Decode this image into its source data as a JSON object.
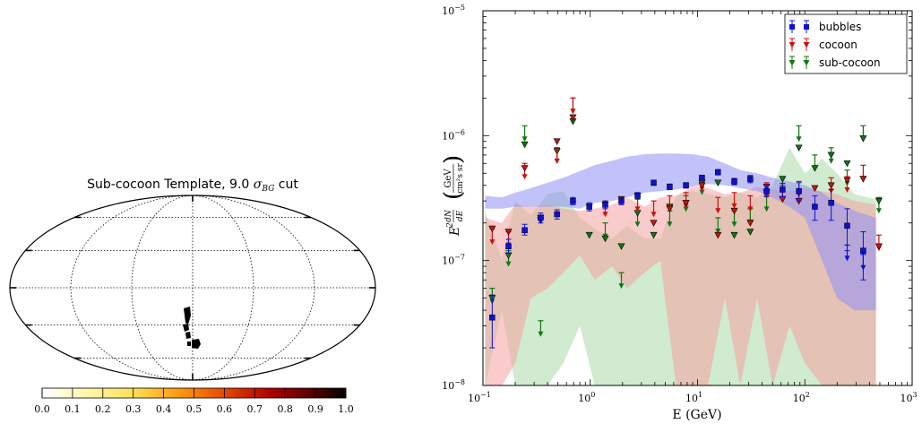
{
  "left_panel": {
    "title_prefix": "Sub-cocoon Template, 9.0 ",
    "title_sigma": "σ",
    "title_sub": "BG",
    "title_suffix": " cut",
    "colorbar": {
      "ticks": [
        "0.0",
        "0.1",
        "0.2",
        "0.3",
        "0.4",
        "0.5",
        "0.6",
        "0.7",
        "0.8",
        "0.9",
        "1.0"
      ],
      "tick_values": [
        0.0,
        0.1,
        0.2,
        0.3,
        0.4,
        0.5,
        0.6,
        0.7,
        0.8,
        0.9,
        1.0
      ],
      "colormap": "hot_r"
    }
  },
  "chart_data": {
    "type": "scatter",
    "xscale": "log",
    "yscale": "log",
    "xlim": [
      0.1,
      1000
    ],
    "ylim": [
      1e-08,
      1e-05
    ],
    "xlabel": "E (GeV)",
    "ylabel_lhs": "E",
    "ylabel_frac": "dN/dE",
    "ylabel_units_num": "GeV",
    "ylabel_units_den": "cm²s sr",
    "x_ticks": [
      {
        "value": 0.1,
        "base": "10",
        "exp": "−1"
      },
      {
        "value": 1,
        "base": "10",
        "exp": "0"
      },
      {
        "value": 10,
        "base": "10",
        "exp": "1"
      },
      {
        "value": 100,
        "base": "10",
        "exp": "2"
      },
      {
        "value": 1000,
        "base": "10",
        "exp": "3"
      }
    ],
    "y_ticks": [
      {
        "value": 1e-08,
        "base": "10",
        "exp": "−8"
      },
      {
        "value": 1e-07,
        "base": "10",
        "exp": "−7"
      },
      {
        "value": 1e-06,
        "base": "10",
        "exp": "−6"
      },
      {
        "value": 1e-05,
        "base": "10",
        "exp": "−5"
      }
    ],
    "legend_position": "top-right",
    "legend": [
      "bubbles",
      "cocoon",
      "sub-cocoon"
    ],
    "series": [
      {
        "name": "bubbles",
        "color": "#1010d0",
        "band_color": "#8f8ff5",
        "x": [
          0.122,
          0.173,
          0.245,
          0.345,
          0.49,
          0.69,
          0.98,
          1.38,
          1.95,
          2.76,
          3.9,
          5.5,
          7.8,
          11,
          15.5,
          22,
          31,
          44,
          62,
          88,
          124,
          176,
          248,
          350
        ],
        "y": [
          3.5e-08,
          1.3e-07,
          1.75e-07,
          2.2e-07,
          2.35e-07,
          3e-07,
          2.7e-07,
          2.8e-07,
          3e-07,
          3.3e-07,
          4.2e-07,
          3.9e-07,
          4e-07,
          4.6e-07,
          5.1e-07,
          4.3e-07,
          4.5e-07,
          3.6e-07,
          3.7e-07,
          3.6e-07,
          2.7e-07,
          2.9e-07,
          1.9e-07,
          1.2e-07
        ],
        "err_lo": [
          1.5e-08,
          1.5e-08,
          1.5e-08,
          2e-08,
          2e-08,
          2e-08,
          2e-08,
          2e-08,
          2e-08,
          2e-08,
          2e-08,
          2e-08,
          2e-08,
          2e-08,
          2.5e-08,
          2.5e-08,
          3e-08,
          3.5e-08,
          4.5e-08,
          6e-08,
          6e-08,
          8e-08,
          7e-08,
          5e-08
        ],
        "err_hi": [
          1.8e-08,
          1.8e-08,
          2e-08,
          2e-08,
          2e-08,
          2e-08,
          2e-08,
          2e-08,
          2e-08,
          2e-08,
          2e-08,
          2e-08,
          2e-08,
          2e-08,
          2.5e-08,
          2.5e-08,
          3e-08,
          3.5e-08,
          4.5e-08,
          6e-08,
          6e-08,
          8e-08,
          7e-08,
          5e-08
        ],
        "upper_limits": [
          {
            "x": 248,
            "y": 1.9e-07
          },
          {
            "x": 350,
            "y": 1.6e-07
          }
        ],
        "band_lo": [
          2.6e-07,
          2.6e-07,
          2.7e-07,
          2.7e-07,
          2.7e-07,
          2.7e-07,
          2.6e-07,
          2.9e-07,
          3e-07,
          3.2e-07,
          3.5e-07,
          3.6e-07,
          3.7e-07,
          3.9e-07,
          4.1e-07,
          4e-07,
          3.8e-07,
          3.6e-07,
          3.2e-07,
          2.7e-07,
          2.2e-07,
          1e-07,
          5e-08,
          4e-08,
          4e-08
        ],
        "band_hi": [
          3.3e-07,
          3.2e-07,
          3.5e-07,
          3.8e-07,
          4.2e-07,
          4.6e-07,
          5.2e-07,
          5.8e-07,
          6.3e-07,
          6.8e-07,
          7.1e-07,
          7.2e-07,
          7.2e-07,
          7.1e-07,
          6.8e-07,
          6e-07,
          5.3e-07,
          5e-07,
          4.6e-07,
          4.3e-07,
          4e-07,
          3.5e-07,
          2.9e-07,
          2.5e-07,
          2.2e-07
        ],
        "band_x": [
          0.105,
          0.15,
          0.2,
          0.28,
          0.4,
          0.56,
          0.8,
          1.1,
          1.6,
          2.2,
          3.2,
          4.5,
          6.3,
          9,
          12.5,
          18,
          25,
          36,
          50,
          72,
          100,
          145,
          200,
          290,
          460
        ]
      },
      {
        "name": "cocoon",
        "color": "#cc1111",
        "band_color": "#f4a0a0",
        "x": [
          0.122,
          0.173,
          0.245,
          0.345,
          0.49,
          0.69,
          0.98,
          1.38,
          1.95,
          2.76,
          3.9,
          5.5,
          7.8,
          11,
          15.5,
          22,
          31,
          44,
          62,
          88,
          124,
          176,
          248,
          350,
          490
        ],
        "y": [
          1.8e-07,
          1.7e-07,
          5.5e-07,
          2.1e-07,
          9e-07,
          1.4e-06,
          2.7e-07,
          2.8e-07,
          3.1e-07,
          3.3e-07,
          2e-07,
          2.6e-07,
          2.9e-07,
          4e-07,
          1.6e-07,
          2.5e-07,
          2e-07,
          3.9e-07,
          3.1e-07,
          3e-07,
          3.8e-07,
          4e-07,
          4.4e-07,
          4.5e-07,
          1.3e-07
        ],
        "upper_limits": [
          {
            "x": 0.122,
            "y": 1.8e-07
          },
          {
            "x": 0.173,
            "y": 1.7e-07
          },
          {
            "x": 0.245,
            "y": 6e-07
          },
          {
            "x": 0.49,
            "y": 8e-07
          },
          {
            "x": 0.69,
            "y": 2e-06
          },
          {
            "x": 1.38,
            "y": 3e-07
          },
          {
            "x": 2.76,
            "y": 3.3e-07
          },
          {
            "x": 3.9,
            "y": 3e-07
          },
          {
            "x": 5.5,
            "y": 3.3e-07
          },
          {
            "x": 7.8,
            "y": 3.5e-07
          },
          {
            "x": 11,
            "y": 4.8e-07
          },
          {
            "x": 15.5,
            "y": 3.2e-07
          },
          {
            "x": 22,
            "y": 3.5e-07
          },
          {
            "x": 31,
            "y": 3.3e-07
          },
          {
            "x": 44,
            "y": 4.2e-07
          },
          {
            "x": 62,
            "y": 4e-07
          },
          {
            "x": 88,
            "y": 4.3e-07
          },
          {
            "x": 176,
            "y": 4.6e-07
          },
          {
            "x": 248,
            "y": 4.7e-07
          },
          {
            "x": 350,
            "y": 5.8e-07
          },
          {
            "x": 490,
            "y": 1.6e-07
          }
        ],
        "band_x": [
          0.105,
          0.15,
          0.2,
          0.28,
          0.4,
          0.56,
          0.8,
          1.1,
          1.6,
          2.2,
          3.2,
          4.5,
          6.3,
          9,
          12.5,
          18,
          25,
          36,
          50,
          72,
          100,
          145,
          200,
          290,
          460
        ],
        "band_lo": [
          1e-08,
          1e-08,
          1.5e-08,
          5e-08,
          6e-08,
          8e-08,
          1.1e-07,
          7e-08,
          9e-08,
          6e-08,
          8e-08,
          1e-07,
          1e-08,
          1e-08,
          1e-08,
          5e-08,
          1e-08,
          5e-08,
          1e-08,
          3e-08,
          1.5e-08,
          1e-08,
          1e-08,
          1e-08,
          1e-08
        ],
        "band_hi": [
          2.2e-07,
          2e-07,
          2.8e-07,
          2.7e-07,
          2.8e-07,
          2.6e-07,
          2.5e-07,
          2.6e-07,
          2.8e-07,
          3.2e-07,
          2.7e-07,
          3.2e-07,
          3.3e-07,
          3.9e-07,
          3.8e-07,
          3.4e-07,
          3.5e-07,
          3.9e-07,
          3.7e-07,
          3.6e-07,
          3.8e-07,
          3.6e-07,
          3.4e-07,
          3e-07,
          2.8e-07
        ]
      },
      {
        "name": "sub-cocoon",
        "color": "#117711",
        "band_color": "#a9dba9",
        "x": [
          0.122,
          0.173,
          0.245,
          0.345,
          0.49,
          0.69,
          0.98,
          1.38,
          1.95,
          2.76,
          3.9,
          5.5,
          7.8,
          11,
          15.5,
          22,
          31,
          44,
          62,
          88,
          124,
          176,
          248,
          350,
          490
        ],
        "y": [
          5e-08,
          1.1e-07,
          8.5e-07,
          2.2e-07,
          7.5e-07,
          1.3e-06,
          1.6e-07,
          1.5e-07,
          1.3e-07,
          2.4e-07,
          1.6e-07,
          2.7e-07,
          2.9e-07,
          4.2e-07,
          4.2e-07,
          1.6e-07,
          1.7e-07,
          3.5e-07,
          4.5e-07,
          8e-07,
          5.5e-07,
          7e-07,
          6e-07,
          9.5e-07,
          3e-07
        ],
        "upper_limits": [
          {
            "x": 0.122,
            "y": 6e-08
          },
          {
            "x": 0.173,
            "y": 1.2e-07
          },
          {
            "x": 0.245,
            "y": 1.2e-06
          },
          {
            "x": 0.345,
            "y": 3.3e-08
          },
          {
            "x": 0.49,
            "y": 8e-07
          },
          {
            "x": 0.69,
            "y": 2e-06
          },
          {
            "x": 1.38,
            "y": 2e-07
          },
          {
            "x": 1.95,
            "y": 8e-08
          },
          {
            "x": 2.76,
            "y": 2.5e-07
          },
          {
            "x": 5.5,
            "y": 2.5e-07
          },
          {
            "x": 7.8,
            "y": 3.3e-07
          },
          {
            "x": 11,
            "y": 4.5e-07
          },
          {
            "x": 15.5,
            "y": 2.2e-07
          },
          {
            "x": 22,
            "y": 2.5e-07
          },
          {
            "x": 31,
            "y": 2.6e-07
          },
          {
            "x": 44,
            "y": 3.3e-07
          },
          {
            "x": 62,
            "y": 4.7e-07
          },
          {
            "x": 88,
            "y": 1.2e-06
          },
          {
            "x": 124,
            "y": 7e-07
          },
          {
            "x": 176,
            "y": 8e-07
          },
          {
            "x": 248,
            "y": 5.3e-07
          },
          {
            "x": 350,
            "y": 1.2e-06
          },
          {
            "x": 490,
            "y": 3.2e-07
          }
        ],
        "band_x": [
          0.105,
          0.15,
          0.2,
          0.28,
          0.4,
          0.56,
          0.8,
          1.1,
          1.6,
          2.2,
          3.2,
          4.5,
          6.3,
          9,
          12.5,
          18,
          25,
          36,
          50,
          72,
          100,
          145,
          200,
          290,
          460
        ],
        "band_lo": [
          1e-08,
          4e-08,
          1e-08,
          1e-08,
          1e-08,
          1.5e-08,
          3e-08,
          1e-08,
          1e-08,
          1e-08,
          1e-08,
          1e-08,
          1e-08,
          1e-08,
          1e-08,
          1e-08,
          1e-08,
          1e-08,
          1e-08,
          1e-08,
          1e-08,
          1e-08,
          1e-08,
          1e-08,
          1e-08
        ],
        "band_hi": [
          2.5e-07,
          1e-07,
          3e-07,
          2.3e-07,
          3.4e-07,
          3.6e-07,
          2.2e-07,
          1.8e-07,
          1.5e-07,
          1.9e-07,
          1.5e-07,
          1.5e-07,
          3.3e-07,
          3.6e-07,
          3.4e-07,
          3.2e-07,
          3.5e-07,
          3.2e-07,
          4e-07,
          8e-07,
          5e-07,
          6.5e-07,
          5e-07,
          3.4e-07,
          3.1e-07
        ]
      }
    ]
  }
}
